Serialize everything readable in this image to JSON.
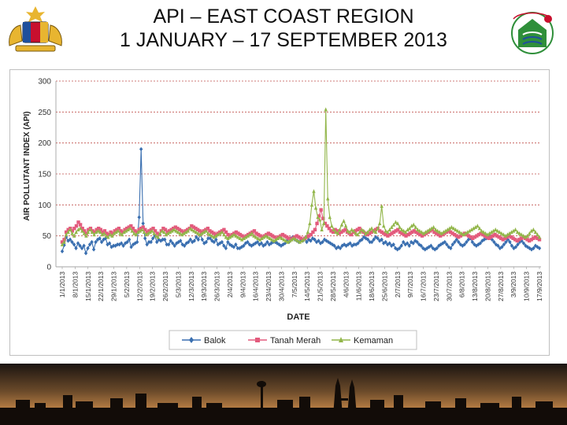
{
  "slide": {
    "title_line1": "API – EAST COAST REGION",
    "title_line2": "1 JANUARY – 17 SEPTEMBER 2013"
  },
  "colors": {
    "balok": "#3a6fb0",
    "tanah_merah": "#e35b7d",
    "kemaman": "#92b64a",
    "gridline": "#c0504d",
    "logo_green": "#2f8f3a",
    "logo_red": "#c8102e",
    "logo_blue": "#1f4f9c"
  },
  "chart_data": {
    "type": "line",
    "xlabel": "DATE",
    "ylabel": "AIR POLLUTANT INDEX (API)",
    "ylim": [
      0,
      300
    ],
    "yticks": [
      0,
      50,
      100,
      150,
      200,
      250,
      300
    ],
    "grid": true,
    "legend_position": "bottom",
    "x_tick_labels": [
      "1/1/2013",
      "8/1/2013",
      "15/1/2013",
      "22/1/2013",
      "29/1/2013",
      "5/2/2013",
      "12/2/2013",
      "19/2/2013",
      "26/2/2013",
      "5/3/2013",
      "12/3/2013",
      "19/3/2013",
      "26/3/2013",
      "2/4/2013",
      "9/4/2013",
      "16/4/2013",
      "23/4/2013",
      "30/4/2013",
      "7/5/2013",
      "14/5/2013",
      "21/5/2013",
      "28/5/2013",
      "4/6/2013",
      "11/6/2013",
      "18/6/2013",
      "25/6/2013",
      "2/7/2013",
      "9/7/2013",
      "16/7/2013",
      "23/7/2013",
      "30/7/2013",
      "6/8/2013",
      "13/8/2013",
      "20/8/2013",
      "27/8/2013",
      "3/9/2013",
      "10/9/2013",
      "17/9/2013"
    ],
    "series": [
      {
        "name": "Balok",
        "marker": "diamond",
        "values": [
          25,
          35,
          48,
          42,
          44,
          40,
          36,
          30,
          38,
          34,
          30,
          34,
          22,
          30,
          36,
          40,
          28,
          40,
          44,
          46,
          40,
          44,
          46,
          36,
          38,
          32,
          34,
          34,
          36,
          36,
          38,
          34,
          38,
          40,
          44,
          32,
          36,
          38,
          40,
          80,
          190,
          70,
          46,
          36,
          40,
          40,
          46,
          50,
          40,
          44,
          42,
          44,
          44,
          36,
          36,
          42,
          38,
          34,
          38,
          40,
          42,
          36,
          34,
          38,
          40,
          44,
          40,
          42,
          48,
          44,
          52,
          44,
          38,
          40,
          46,
          46,
          42,
          40,
          44,
          36,
          38,
          40,
          34,
          30,
          40,
          36,
          34,
          32,
          36,
          30,
          30,
          32,
          34,
          38,
          40,
          36,
          34,
          36,
          38,
          40,
          36,
          38,
          34,
          36,
          40,
          36,
          38,
          40,
          40,
          38,
          36,
          34,
          36,
          38,
          42,
          40,
          46,
          48,
          44,
          42,
          40,
          44,
          42,
          46,
          40,
          44,
          42,
          46,
          44,
          40,
          42,
          38,
          40,
          44,
          42,
          40,
          38,
          36,
          34,
          30,
          32,
          30,
          34,
          36,
          34,
          36,
          38,
          34,
          36,
          36,
          38,
          42,
          44,
          48,
          46,
          44,
          40,
          40,
          44,
          48,
          46,
          42,
          44,
          38,
          40,
          36,
          38,
          34,
          36,
          30,
          28,
          30,
          34,
          40,
          36,
          38,
          34,
          40,
          38,
          42,
          40,
          36,
          34,
          30,
          28,
          30,
          32,
          34,
          30,
          28,
          30,
          34,
          36,
          38,
          40,
          36,
          32,
          30,
          36,
          40,
          44,
          40,
          36,
          34,
          36,
          40,
          44,
          46,
          40,
          36,
          34,
          36,
          38,
          42,
          44,
          46,
          48,
          50,
          44,
          40,
          36,
          34,
          30,
          32,
          36,
          40,
          44,
          40,
          34,
          30,
          32,
          36,
          40,
          42,
          38,
          34,
          32,
          30,
          28,
          30,
          34,
          32,
          30
        ]
      },
      {
        "name": "Tanah Merah",
        "marker": "square",
        "values": [
          40,
          44,
          56,
          60,
          62,
          58,
          62,
          66,
          72,
          68,
          62,
          58,
          54,
          60,
          62,
          58,
          56,
          60,
          62,
          60,
          56,
          58,
          54,
          52,
          56,
          54,
          58,
          60,
          62,
          58,
          56,
          60,
          62,
          64,
          66,
          62,
          58,
          56,
          60,
          62,
          64,
          60,
          56,
          58,
          60,
          62,
          58,
          54,
          52,
          58,
          62,
          60,
          56,
          58,
          60,
          62,
          64,
          62,
          60,
          58,
          56,
          58,
          60,
          62,
          66,
          64,
          62,
          60,
          58,
          56,
          58,
          60,
          62,
          58,
          56,
          54,
          52,
          54,
          56,
          58,
          60,
          56,
          52,
          50,
          52,
          54,
          56,
          54,
          52,
          50,
          48,
          50,
          52,
          54,
          56,
          58,
          54,
          52,
          50,
          48,
          50,
          52,
          54,
          52,
          50,
          48,
          46,
          48,
          50,
          52,
          50,
          48,
          46,
          44,
          46,
          48,
          50,
          48,
          46,
          44,
          46,
          48,
          50,
          52,
          56,
          60,
          70,
          82,
          92,
          78,
          70,
          66,
          62,
          58,
          56,
          60,
          58,
          54,
          56,
          58,
          60,
          56,
          54,
          52,
          56,
          58,
          60,
          62,
          58,
          56,
          54,
          52,
          54,
          56,
          58,
          60,
          62,
          58,
          56,
          54,
          52,
          50,
          52,
          54,
          56,
          58,
          60,
          56,
          54,
          52,
          50,
          52,
          54,
          56,
          58,
          56,
          54,
          52,
          50,
          52,
          54,
          56,
          58,
          60,
          56,
          54,
          52,
          50,
          52,
          54,
          56,
          58,
          56,
          54,
          52,
          50,
          48,
          50,
          52,
          54,
          52,
          50,
          48,
          46,
          48,
          50,
          52,
          54,
          52,
          50,
          48,
          46,
          48,
          50,
          52,
          50,
          48,
          46,
          44,
          46,
          48,
          50,
          48,
          46,
          44,
          42,
          44,
          46,
          48,
          46,
          44,
          42,
          44,
          46,
          48,
          46,
          44
        ]
      },
      {
        "name": "Kemaman",
        "marker": "triangle",
        "values": [
          36,
          40,
          52,
          56,
          60,
          54,
          50,
          56,
          60,
          62,
          58,
          54,
          50,
          56,
          60,
          56,
          52,
          56,
          58,
          56,
          52,
          54,
          50,
          48,
          52,
          50,
          54,
          56,
          58,
          54,
          52,
          56,
          58,
          60,
          62,
          58,
          54,
          52,
          56,
          58,
          60,
          56,
          52,
          54,
          56,
          58,
          54,
          50,
          48,
          54,
          58,
          56,
          52,
          54,
          56,
          58,
          60,
          58,
          56,
          54,
          52,
          54,
          56,
          58,
          62,
          60,
          58,
          56,
          54,
          52,
          54,
          56,
          58,
          54,
          52,
          50,
          48,
          50,
          52,
          54,
          56,
          52,
          48,
          46,
          48,
          50,
          52,
          50,
          48,
          46,
          44,
          46,
          48,
          50,
          52,
          54,
          50,
          48,
          46,
          44,
          46,
          48,
          50,
          48,
          46,
          44,
          42,
          44,
          46,
          48,
          46,
          44,
          42,
          40,
          42,
          44,
          46,
          44,
          42,
          40,
          42,
          44,
          48,
          56,
          70,
          100,
          122,
          95,
          80,
          76,
          60,
          70,
          254,
          110,
          80,
          66,
          60,
          56,
          54,
          60,
          68,
          74,
          66,
          58,
          56,
          60,
          58,
          54,
          52,
          56,
          60,
          58,
          54,
          56,
          60,
          62,
          58,
          56,
          62,
          70,
          98,
          66,
          58,
          56,
          60,
          64,
          68,
          72,
          70,
          64,
          60,
          58,
          56,
          60,
          62,
          66,
          68,
          64,
          60,
          58,
          56,
          54,
          56,
          58,
          60,
          62,
          64,
          60,
          58,
          56,
          54,
          56,
          58,
          60,
          62,
          64,
          62,
          60,
          58,
          56,
          54,
          52,
          54,
          56,
          58,
          60,
          62,
          64,
          66,
          62,
          58,
          56,
          54,
          52,
          54,
          56,
          58,
          60,
          58,
          56,
          54,
          52,
          50,
          52,
          54,
          56,
          58,
          60,
          56,
          54,
          52,
          50,
          48,
          50,
          54,
          58,
          60,
          56,
          52,
          48
        ]
      }
    ]
  }
}
